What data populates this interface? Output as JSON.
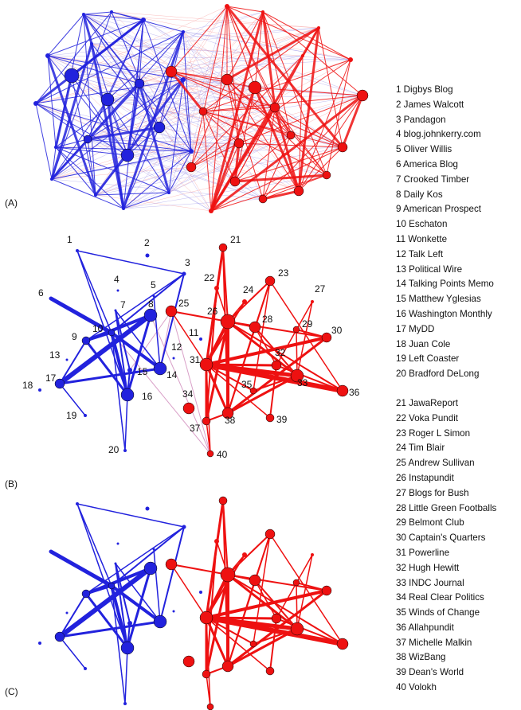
{
  "panels": {
    "a": "(A)",
    "b": "(B)",
    "c": "(C)"
  },
  "colors": {
    "liberal": "#2222dd",
    "conservative": "#ee1111",
    "cross": "#d9a0c8",
    "liberal_light": "#8f86e6",
    "conservative_light": "#f58a8a"
  },
  "blogs": [
    {
      "id": "1",
      "name": "Digbys Blog"
    },
    {
      "id": "2",
      "name": "James Walcott"
    },
    {
      "id": "3",
      "name": "Pandagon"
    },
    {
      "id": "4",
      "name": "blog.johnkerry.com"
    },
    {
      "id": "5",
      "name": "Oliver Willis"
    },
    {
      "id": "6",
      "name": "America Blog"
    },
    {
      "id": "7",
      "name": "Crooked Timber"
    },
    {
      "id": "8",
      "name": "Daily Kos"
    },
    {
      "id": "9",
      "name": "American Prospect"
    },
    {
      "id": "10",
      "name": "Eschaton"
    },
    {
      "id": "11",
      "name": "Wonkette"
    },
    {
      "id": "12",
      "name": "Talk Left"
    },
    {
      "id": "13",
      "name": "Political Wire"
    },
    {
      "id": "14",
      "name": "Talking Points Memo"
    },
    {
      "id": "15",
      "name": "Matthew Yglesias"
    },
    {
      "id": "16",
      "name": "Washington Monthly"
    },
    {
      "id": "17",
      "name": "MyDD"
    },
    {
      "id": "18",
      "name": "Juan Cole"
    },
    {
      "id": "19",
      "name": "Left Coaster"
    },
    {
      "id": "20",
      "name": "Bradford DeLong"
    },
    {
      "id": "21",
      "name": "JawaReport"
    },
    {
      "id": "22",
      "name": "Voka Pundit"
    },
    {
      "id": "23",
      "name": "Roger L Simon"
    },
    {
      "id": "24",
      "name": "Tim Blair"
    },
    {
      "id": "25",
      "name": "Andrew Sullivan"
    },
    {
      "id": "26",
      "name": "Instapundit"
    },
    {
      "id": "27",
      "name": "Blogs for Bush"
    },
    {
      "id": "28",
      "name": "Little Green Footballs"
    },
    {
      "id": "29",
      "name": "Belmont Club"
    },
    {
      "id": "30",
      "name": "Captain's Quarters"
    },
    {
      "id": "31",
      "name": "Powerline"
    },
    {
      "id": "32",
      "name": "Hugh Hewitt"
    },
    {
      "id": "33",
      "name": "INDC Journal"
    },
    {
      "id": "34",
      "name": "Real Clear Politics"
    },
    {
      "id": "35",
      "name": "Winds of Change"
    },
    {
      "id": "36",
      "name": "Allahpundit"
    },
    {
      "id": "37",
      "name": "Michelle Malkin"
    },
    {
      "id": "38",
      "name": "WizBang"
    },
    {
      "id": "39",
      "name": "Dean's World"
    },
    {
      "id": "40",
      "name": "Volokh"
    }
  ]
}
